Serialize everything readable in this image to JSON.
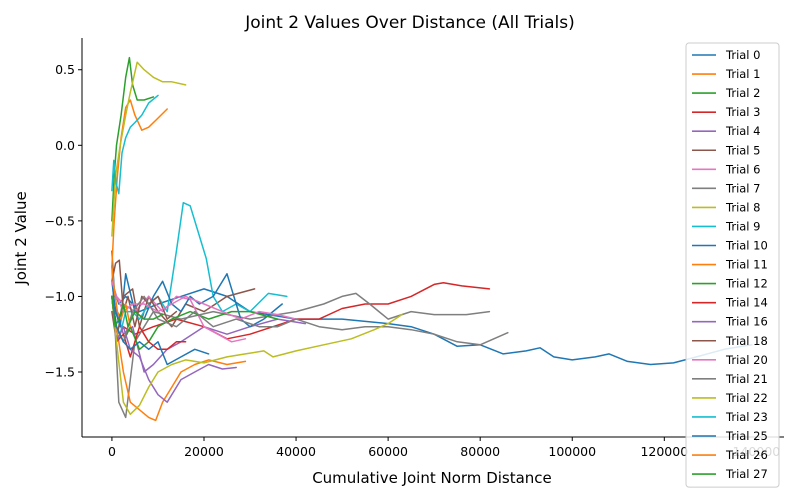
{
  "chart_data": {
    "type": "line",
    "title": "Joint 2 Values Over Distance (All Trials)",
    "xlabel": "Cumulative Joint Norm Distance",
    "ylabel": "Joint 2 Value",
    "xlim": [
      -6500,
      146000
    ],
    "ylim": [
      -1.93,
      0.71
    ],
    "xticks": [
      0,
      20000,
      40000,
      60000,
      80000,
      100000,
      120000,
      140000
    ],
    "xtick_labels": [
      "0",
      "20000",
      "40000",
      "60000",
      "80000",
      "100000",
      "120000",
      "140000"
    ],
    "yticks": [
      -1.5,
      -1.0,
      -0.5,
      0.0,
      0.5
    ],
    "ytick_labels": [
      "−1.5",
      "−1.0",
      "−0.5",
      "0.0",
      "0.5"
    ],
    "grid": false,
    "legend_position": "right",
    "series": [
      {
        "name": "Trial 0",
        "color": "#1f77b4",
        "x": [
          0,
          500,
          1500,
          3000,
          6000,
          10000,
          15000,
          20000,
          25000,
          30000,
          40000,
          50000,
          60000,
          65000,
          70000,
          75000,
          80000,
          85000,
          90000,
          93000,
          96000,
          100000,
          105000,
          108000,
          112000,
          117000,
          122000,
          127000,
          133000,
          139000
        ],
        "y": [
          -0.7,
          -0.95,
          -1.05,
          -1.0,
          -1.1,
          -1.05,
          -1.0,
          -0.95,
          -1.0,
          -1.1,
          -1.15,
          -1.15,
          -1.18,
          -1.2,
          -1.25,
          -1.33,
          -1.32,
          -1.38,
          -1.36,
          -1.34,
          -1.4,
          -1.42,
          -1.4,
          -1.38,
          -1.43,
          -1.45,
          -1.44,
          -1.4,
          -1.35,
          -1.32
        ]
      },
      {
        "name": "Trial 1",
        "color": "#ff7f0e",
        "x": [
          0,
          500,
          1200,
          2000,
          3000,
          4000,
          5000,
          6500,
          8000,
          10000,
          12000
        ],
        "y": [
          -0.8,
          -0.5,
          -0.2,
          0.05,
          0.25,
          0.3,
          0.2,
          0.1,
          0.12,
          0.18,
          0.24
        ]
      },
      {
        "name": "Trial 2",
        "color": "#2ca02c",
        "x": [
          0,
          500,
          1000,
          2000,
          3000,
          3800,
          4500,
          5500,
          7000,
          9000
        ],
        "y": [
          -0.5,
          -0.2,
          0.0,
          0.2,
          0.45,
          0.58,
          0.4,
          0.3,
          0.3,
          0.32
        ]
      },
      {
        "name": "Trial 3",
        "color": "#d62728",
        "x": [
          0,
          1000,
          2500,
          5000,
          9000,
          14000,
          20000,
          25000,
          30000,
          35000,
          40000,
          45000,
          50000,
          55000,
          60000,
          65000,
          70000,
          72000,
          76000,
          82000
        ],
        "y": [
          -1.0,
          -1.3,
          -1.2,
          -1.25,
          -1.2,
          -1.15,
          -1.2,
          -1.28,
          -1.25,
          -1.2,
          -1.15,
          -1.15,
          -1.08,
          -1.05,
          -1.05,
          -1.0,
          -0.92,
          -0.91,
          -0.93,
          -0.95
        ]
      },
      {
        "name": "Trial 4",
        "color": "#9467bd",
        "x": [
          0,
          1000,
          2500,
          4500,
          7000,
          9000,
          12000,
          15000,
          20000,
          25000,
          30000,
          36000,
          42000
        ],
        "y": [
          -1.0,
          -1.1,
          -1.25,
          -1.2,
          -1.5,
          -1.45,
          -1.35,
          -1.3,
          -1.2,
          -1.25,
          -1.2,
          -1.15,
          -1.18
        ]
      },
      {
        "name": "Trial 5",
        "color": "#8c564b",
        "x": [
          0,
          1000,
          2500,
          4500,
          6000,
          8000,
          10000,
          13000,
          16000,
          20000,
          25000,
          31000
        ],
        "y": [
          -1.1,
          -1.3,
          -1.0,
          -0.95,
          -1.2,
          -1.0,
          -1.1,
          -1.2,
          -1.05,
          -1.1,
          -1.0,
          -0.95
        ]
      },
      {
        "name": "Trial 6",
        "color": "#e377c2",
        "x": [
          0,
          1000,
          2500,
          5000,
          8000,
          11000,
          14000,
          17000,
          20000,
          23000,
          26000,
          29000
        ],
        "y": [
          -1.0,
          -1.0,
          -1.05,
          -1.1,
          -1.0,
          -1.1,
          -1.0,
          -1.02,
          -1.2,
          -1.25,
          -1.3,
          -1.28
        ]
      },
      {
        "name": "Trial 7",
        "color": "#7f7f7f",
        "x": [
          0,
          1500,
          3000,
          5000,
          9000,
          15000,
          22000,
          30000,
          40000,
          46000,
          50000,
          53000,
          56000,
          60000,
          65000,
          70000,
          77000,
          82000
        ],
        "y": [
          -0.8,
          -1.7,
          -1.8,
          -1.3,
          -1.1,
          -1.15,
          -1.1,
          -1.15,
          -1.1,
          -1.05,
          -1.0,
          -0.98,
          -1.05,
          -1.15,
          -1.1,
          -1.12,
          -1.12,
          -1.1
        ]
      },
      {
        "name": "Trial 8",
        "color": "#bcbd22",
        "x": [
          0,
          800,
          1800,
          3000,
          4000,
          5500,
          7000,
          9000,
          11000,
          13000,
          16000
        ],
        "y": [
          -0.6,
          -0.2,
          0.0,
          0.2,
          0.35,
          0.55,
          0.5,
          0.45,
          0.42,
          0.42,
          0.4
        ]
      },
      {
        "name": "Trial 9",
        "color": "#17becf",
        "x": [
          0,
          800,
          1800,
          3000,
          4500,
          6000,
          8000,
          10000,
          12000,
          14000,
          15500,
          17000,
          19000,
          20500,
          22000,
          24000,
          27000,
          30000,
          34000,
          38000
        ],
        "y": [
          -1.0,
          -1.2,
          -1.25,
          -1.1,
          -1.1,
          -1.15,
          -1.05,
          -1.0,
          -1.1,
          -0.7,
          -0.38,
          -0.4,
          -0.6,
          -0.75,
          -1.0,
          -1.1,
          -1.05,
          -1.1,
          -0.98,
          -1.0
        ]
      },
      {
        "name": "Trial 10",
        "color": "#1f77b4",
        "x": [
          0,
          800,
          1800,
          3000,
          5000,
          7000,
          9000,
          11000,
          13000,
          15000,
          17000,
          19000,
          22000,
          25000,
          28000,
          30000,
          33000,
          37000
        ],
        "y": [
          -0.9,
          -1.1,
          -1.2,
          -0.85,
          -1.1,
          -1.15,
          -1.0,
          -0.9,
          -1.05,
          -1.1,
          -1.0,
          -1.05,
          -1.0,
          -0.85,
          -1.15,
          -1.2,
          -1.15,
          -1.05
        ]
      },
      {
        "name": "Trial 11",
        "color": "#ff7f0e",
        "x": [
          0,
          1000,
          2500,
          4000,
          6000,
          8000,
          9500,
          11000,
          13000,
          15000,
          18000,
          21000,
          25000,
          29000
        ],
        "y": [
          -1.0,
          -1.2,
          -1.5,
          -1.7,
          -1.75,
          -1.8,
          -1.82,
          -1.7,
          -1.6,
          -1.5,
          -1.45,
          -1.42,
          -1.45,
          -1.43
        ]
      },
      {
        "name": "Trial 12",
        "color": "#2ca02c",
        "x": [
          0,
          1000,
          2500,
          4000,
          6000,
          8000,
          10000,
          13000,
          17000,
          21000,
          26000,
          30000,
          36000
        ],
        "y": [
          -1.0,
          -1.2,
          -1.3,
          -1.2,
          -1.35,
          -1.3,
          -1.2,
          -1.15,
          -1.1,
          -1.15,
          -1.1,
          -1.1,
          -1.15
        ]
      },
      {
        "name": "Trial 14",
        "color": "#d62728",
        "x": [
          0,
          1000,
          2500,
          4000,
          6000,
          8000,
          10000,
          12000,
          14000,
          16000
        ],
        "y": [
          -1.0,
          -1.3,
          -1.25,
          -1.4,
          -1.2,
          -1.3,
          -1.35,
          -1.35,
          -1.3,
          -1.3
        ]
      },
      {
        "name": "Trial 16",
        "color": "#9467bd",
        "x": [
          0,
          1000,
          2500,
          4000,
          6000,
          8000,
          10000,
          12000,
          15000,
          18000,
          21000,
          24000,
          27000
        ],
        "y": [
          -1.0,
          -1.3,
          -1.2,
          -1.35,
          -1.4,
          -1.55,
          -1.65,
          -1.7,
          -1.55,
          -1.5,
          -1.45,
          -1.48,
          -1.47
        ]
      },
      {
        "name": "Trial 18",
        "color": "#8c564b",
        "x": [
          0,
          800,
          1600,
          2500,
          3500,
          5000,
          6500,
          8000,
          10000,
          12000,
          14000
        ],
        "y": [
          -0.9,
          -0.78,
          -0.76,
          -1.1,
          -1.0,
          -1.2,
          -1.0,
          -1.05,
          -1.0,
          -1.15,
          -1.1
        ]
      },
      {
        "name": "Trial 20",
        "color": "#e377c2",
        "x": [
          0,
          1000,
          2500,
          4500,
          7000,
          10000,
          13000,
          16000,
          20000,
          24000,
          28000,
          32000,
          36000,
          40000
        ],
        "y": [
          -0.9,
          -1.0,
          -1.1,
          -1.05,
          -1.05,
          -1.1,
          -1.05,
          -1.0,
          -1.05,
          -1.1,
          -1.15,
          -1.1,
          -1.12,
          -1.15
        ]
      },
      {
        "name": "Trial 21",
        "color": "#7f7f7f",
        "x": [
          0,
          1000,
          2500,
          4500,
          7000,
          10000,
          14000,
          18000,
          22000,
          27000,
          32000,
          36000,
          40000,
          45000,
          50000,
          55000,
          60000,
          65000,
          70000,
          75000,
          80000,
          86000
        ],
        "y": [
          -1.0,
          -1.2,
          -1.3,
          -1.1,
          -1.0,
          -1.15,
          -1.2,
          -1.1,
          -1.2,
          -1.15,
          -1.2,
          -1.2,
          -1.15,
          -1.2,
          -1.22,
          -1.2,
          -1.2,
          -1.22,
          -1.25,
          -1.3,
          -1.32,
          -1.24
        ]
      },
      {
        "name": "Trial 22",
        "color": "#bcbd22",
        "x": [
          0,
          1000,
          2500,
          4000,
          6000,
          8000,
          10000,
          13000,
          16000,
          20000,
          25000,
          29000,
          33000,
          35000,
          40000,
          46000,
          52000,
          57000,
          60000,
          63000
        ],
        "y": [
          -1.0,
          -1.3,
          -1.7,
          -1.78,
          -1.72,
          -1.6,
          -1.5,
          -1.45,
          -1.42,
          -1.44,
          -1.4,
          -1.38,
          -1.36,
          -1.4,
          -1.36,
          -1.32,
          -1.28,
          -1.22,
          -1.18,
          -1.12
        ]
      },
      {
        "name": "Trial 23",
        "color": "#17becf",
        "x": [
          0,
          400,
          900,
          1500,
          2200,
          3000,
          4000,
          5000,
          6500,
          8000,
          10000
        ],
        "y": [
          -0.3,
          -0.1,
          -0.25,
          -0.32,
          -0.05,
          0.05,
          0.12,
          0.15,
          0.2,
          0.28,
          0.33
        ]
      },
      {
        "name": "Trial 25",
        "color": "#1f77b4",
        "x": [
          0,
          1000,
          2500,
          4000,
          6000,
          8000,
          10000,
          12000,
          15000,
          18000,
          21000
        ],
        "y": [
          -1.0,
          -1.2,
          -1.3,
          -1.35,
          -1.3,
          -1.35,
          -1.3,
          -1.45,
          -1.4,
          -1.35,
          -1.38
        ]
      },
      {
        "name": "Trial 26",
        "color": "#ff7f0e",
        "x": [
          0,
          500,
          1200,
          2000,
          3000,
          4000
        ],
        "y": [
          -0.8,
          -0.95,
          -1.1,
          -1.15,
          -1.05,
          -1.2
        ]
      },
      {
        "name": "Trial 27",
        "color": "#2ca02c",
        "x": [
          0,
          700,
          1500,
          2500,
          3500,
          5000,
          7000,
          9000,
          11000
        ],
        "y": [
          -1.0,
          -1.2,
          -1.15,
          -1.05,
          -1.2,
          -1.1,
          -1.15,
          -1.15,
          -1.12
        ]
      }
    ]
  }
}
